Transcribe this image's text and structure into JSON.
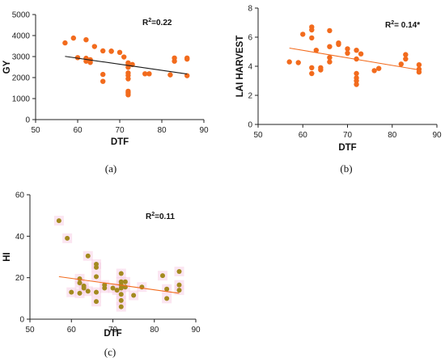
{
  "chart_data": [
    {
      "type": "scatter",
      "caption": "(a)",
      "xlabel": "DTF",
      "ylabel": "GY",
      "xlim": [
        50,
        90
      ],
      "ylim": [
        0,
        5000
      ],
      "xticks": [
        "50",
        "60",
        "70",
        "80",
        "90"
      ],
      "yticks": [
        "0",
        "1000",
        "2000",
        "3000",
        "4000",
        "5000"
      ],
      "annotation": {
        "base": "R",
        "sup": "2",
        "rest": "=0.22"
      },
      "colors": {
        "points": "#f26b1d",
        "trend": "#1a1a1a"
      },
      "trendline": [
        [
          57,
          3010
        ],
        [
          86,
          2170
        ]
      ],
      "points": [
        [
          57,
          3650
        ],
        [
          59,
          3880
        ],
        [
          60,
          2950
        ],
        [
          62,
          3800
        ],
        [
          62,
          2920
        ],
        [
          62,
          2780
        ],
        [
          63,
          2840
        ],
        [
          63,
          2720
        ],
        [
          63,
          2850
        ],
        [
          64,
          3480
        ],
        [
          66,
          3270
        ],
        [
          66,
          2150
        ],
        [
          66,
          1820
        ],
        [
          68,
          3260
        ],
        [
          68,
          3250
        ],
        [
          70,
          3200
        ],
        [
          71,
          2980
        ],
        [
          72,
          2700
        ],
        [
          72,
          2620
        ],
        [
          72,
          2490
        ],
        [
          72,
          2220
        ],
        [
          72,
          2100
        ],
        [
          72,
          1940
        ],
        [
          72,
          1350
        ],
        [
          72,
          1270
        ],
        [
          72,
          1180
        ],
        [
          73,
          2620
        ],
        [
          76,
          2180
        ],
        [
          77,
          2180
        ],
        [
          82,
          2130
        ],
        [
          83,
          2930
        ],
        [
          83,
          2780
        ],
        [
          86,
          2930
        ],
        [
          86,
          2880
        ],
        [
          86,
          2090
        ]
      ]
    },
    {
      "type": "scatter",
      "caption": "(b)",
      "xlabel": "DTF",
      "ylabel": "LAI HARVEST",
      "xlim": [
        50,
        90
      ],
      "ylim": [
        0,
        8
      ],
      "xticks": [
        "50",
        "60",
        "70",
        "80",
        "90"
      ],
      "yticks": [
        "0",
        "2",
        "4",
        "6",
        "8"
      ],
      "annotation": {
        "base": "R",
        "sup": "2",
        "rest": "= 0.14*"
      },
      "colors": {
        "points": "#f26b1d",
        "trend": "#f26b1d"
      },
      "trendline": [
        [
          57,
          5.25
        ],
        [
          86,
          3.75
        ]
      ],
      "points": [
        [
          57,
          4.3
        ],
        [
          59,
          4.25
        ],
        [
          60,
          6.2
        ],
        [
          62,
          6.7
        ],
        [
          62,
          6.5
        ],
        [
          62,
          5.95
        ],
        [
          62,
          3.9
        ],
        [
          62,
          3.5
        ],
        [
          63,
          5.1
        ],
        [
          64,
          3.9
        ],
        [
          64,
          3.75
        ],
        [
          66,
          6.45
        ],
        [
          66,
          5.35
        ],
        [
          66,
          4.6
        ],
        [
          66,
          4.3
        ],
        [
          68,
          5.6
        ],
        [
          68,
          5.5
        ],
        [
          70,
          5.2
        ],
        [
          70,
          4.9
        ],
        [
          72,
          5.1
        ],
        [
          72,
          4.5
        ],
        [
          72,
          3.5
        ],
        [
          72,
          3.2
        ],
        [
          72,
          3.0
        ],
        [
          72,
          2.75
        ],
        [
          73,
          4.85
        ],
        [
          76,
          3.7
        ],
        [
          77,
          3.85
        ],
        [
          82,
          4.15
        ],
        [
          83,
          4.8
        ],
        [
          83,
          4.5
        ],
        [
          86,
          4.1
        ],
        [
          86,
          3.8
        ],
        [
          86,
          3.6
        ]
      ]
    },
    {
      "type": "scatter",
      "caption": "(c)",
      "xlabel": "DTF",
      "ylabel": "HI",
      "xlim": [
        50,
        90
      ],
      "ylim": [
        0,
        60
      ],
      "xticks": [
        "50",
        "60",
        "70",
        "80",
        "90"
      ],
      "yticks": [
        "0",
        "20",
        "40",
        "60"
      ],
      "annotation": {
        "base": "R",
        "sup": "2",
        "rest": "=0.11"
      },
      "colors": {
        "points": "#a38a1f",
        "trend": "#f26b1d",
        "point_halo": "#f7cfe6"
      },
      "trendline": [
        [
          57,
          20.5
        ],
        [
          86,
          12.5
        ]
      ],
      "points": [
        [
          57,
          47.5
        ],
        [
          59,
          39.0
        ],
        [
          60,
          13.0
        ],
        [
          62,
          19.5
        ],
        [
          62,
          17.5
        ],
        [
          62,
          12.5
        ],
        [
          63,
          16.0
        ],
        [
          63,
          15.0
        ],
        [
          64,
          30.5
        ],
        [
          64,
          13.5
        ],
        [
          66,
          26.5
        ],
        [
          66,
          25.0
        ],
        [
          66,
          20.5
        ],
        [
          66,
          13.0
        ],
        [
          66,
          8.5
        ],
        [
          68,
          16.5
        ],
        [
          68,
          15.0
        ],
        [
          70,
          15.0
        ],
        [
          71,
          14.0
        ],
        [
          72,
          22.0
        ],
        [
          72,
          18.0
        ],
        [
          72,
          16.5
        ],
        [
          72,
          15.0
        ],
        [
          72,
          12.0
        ],
        [
          72,
          9.0
        ],
        [
          72,
          6.0
        ],
        [
          73,
          18.0
        ],
        [
          73,
          15.5
        ],
        [
          75,
          11.5
        ],
        [
          77,
          15.5
        ],
        [
          82,
          21.0
        ],
        [
          83,
          14.5
        ],
        [
          83,
          10.0
        ],
        [
          86,
          23.0
        ],
        [
          86,
          16.5
        ],
        [
          86,
          14.0
        ]
      ]
    }
  ]
}
